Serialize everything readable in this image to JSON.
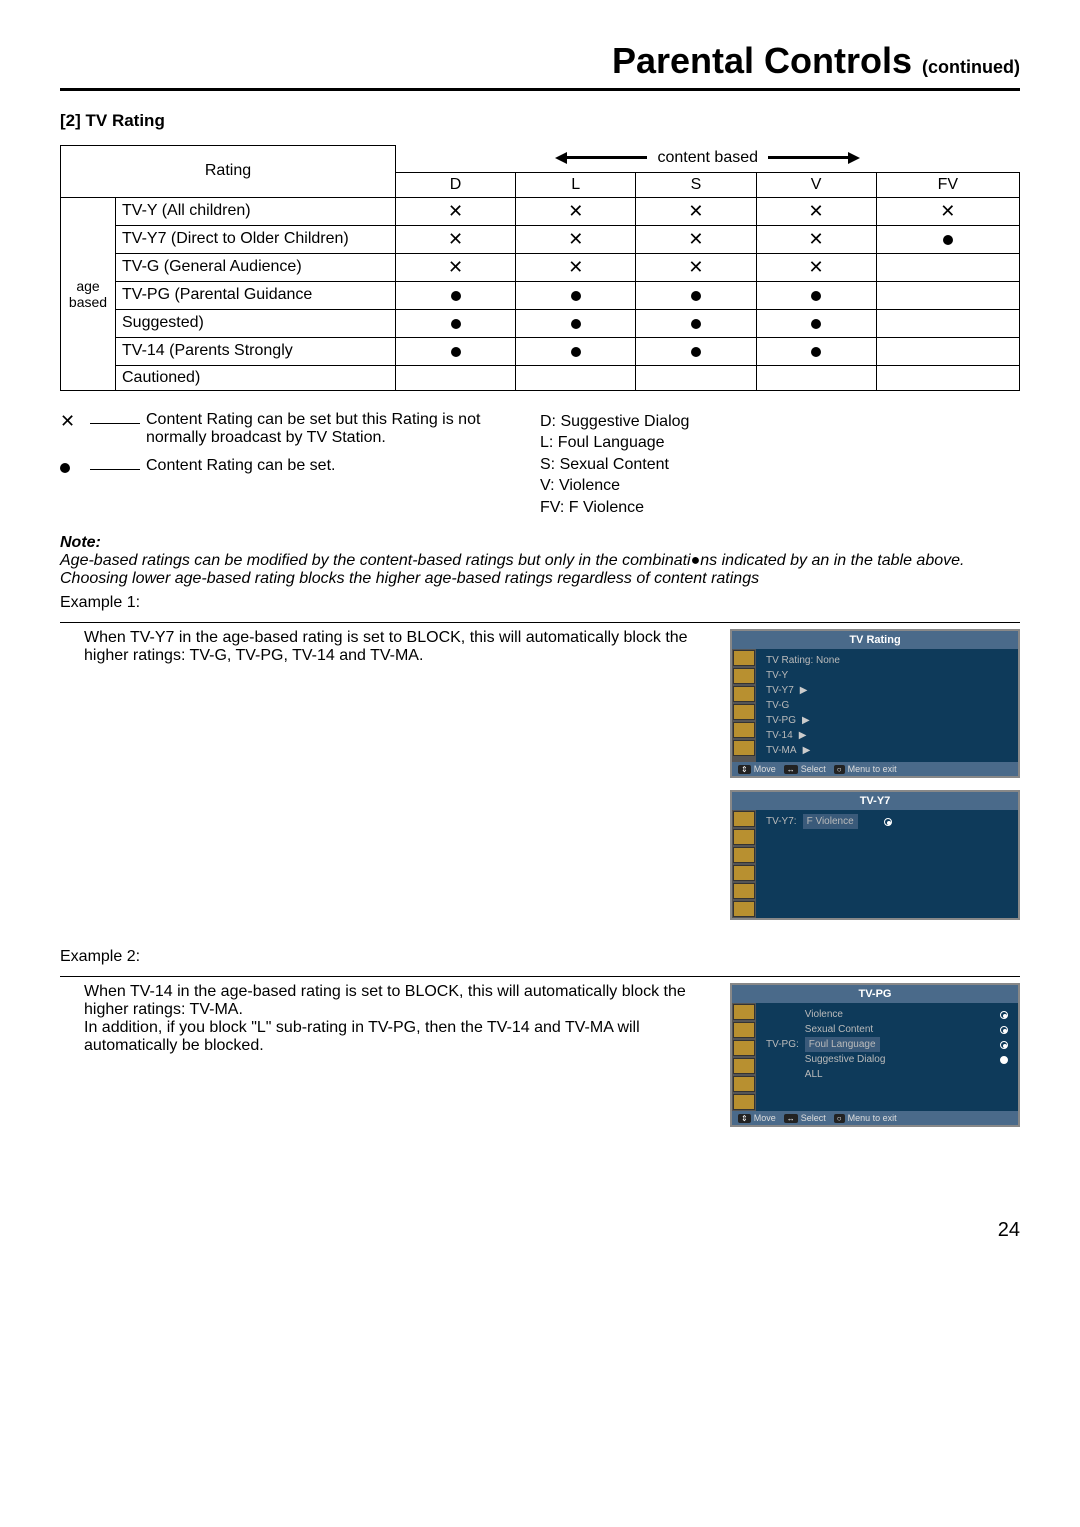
{
  "page": {
    "title": "Parental Controls",
    "subtitle": "(continued)",
    "section_heading": "[2] TV Rating",
    "page_number": "24"
  },
  "table": {
    "rating_label": "Rating",
    "content_based_label": "content based",
    "age_based_label": "age based",
    "columns": [
      "D",
      "L",
      "S",
      "V",
      "FV"
    ],
    "rows": [
      {
        "name": "TV-Y (All children)",
        "marks": [
          "x",
          "x",
          "x",
          "x",
          "x"
        ]
      },
      {
        "name": "TV-Y7 (Direct to Older Children)",
        "marks": [
          "x",
          "x",
          "x",
          "x",
          "dot"
        ]
      },
      {
        "name": "TV-G (General Audience)",
        "marks": [
          "x",
          "x",
          "x",
          "x",
          ""
        ]
      },
      {
        "name": "TV-PG (Parental Guidance",
        "marks": [
          "dot",
          "dot",
          "dot",
          "dot",
          ""
        ]
      },
      {
        "name": "Suggested)",
        "marks": [
          "dot",
          "dot",
          "dot",
          "dot",
          ""
        ]
      },
      {
        "name": "TV-14 (Parents Strongly",
        "marks": [
          "dot",
          "dot",
          "dot",
          "dot",
          ""
        ]
      },
      {
        "name": "Cautioned)",
        "marks": [
          "",
          "",
          "",
          "",
          ""
        ]
      }
    ]
  },
  "legend": {
    "x_text": "Content Rating can be set but this Rating is not normally broadcast by TV Station.",
    "dot_text": "Content Rating can be set.",
    "codes": {
      "d": "D: Suggestive Dialog",
      "l": "L: Foul  Language",
      "s": "S: Sexual Content",
      "v": "V: Violence",
      "fv": "FV: F Violence"
    }
  },
  "note": {
    "label": "Note:",
    "line1": "Age-based ratings can be modified by the content-based ratings but only in the combinati●ns indicated by an   in the table above.",
    "line2": "Choosing lower age-based rating blocks the higher age-based ratings regardless of content ratings"
  },
  "example1": {
    "title": "Example 1:",
    "text": "When TV-Y7 in the age-based rating is set to BLOCK, this will automatically block the higher ratings: TV-G, TV-PG, TV-14 and TV-MA."
  },
  "example2": {
    "title": "Example 2:",
    "text1": "When TV-14 in the age-based rating is set to BLOCK, this will automatically block the higher ratings: TV-MA.",
    "text2": "In addition, if you block \"L\" sub-rating in TV-PG, then the TV-14 and TV-MA will automatically be blocked."
  },
  "osd1": {
    "title": "TV Rating",
    "items": [
      {
        "label": "TV Rating: None",
        "arrow": false
      },
      {
        "label": "TV-Y",
        "arrow": false
      },
      {
        "label": "TV-Y7",
        "arrow": true
      },
      {
        "label": "TV-G",
        "arrow": false
      },
      {
        "label": "TV-PG",
        "arrow": true
      },
      {
        "label": "TV-14",
        "arrow": true
      },
      {
        "label": "TV-MA",
        "arrow": true
      }
    ],
    "footer": {
      "move": "Move",
      "select": "Select",
      "menu": "Menu to exit"
    }
  },
  "osd2": {
    "title": "TV-Y7",
    "row_label": "TV-Y7:",
    "item": "F Violence"
  },
  "osd3": {
    "title": "TV-PG",
    "row_label": "TV-PG:",
    "items": [
      {
        "label": "Violence",
        "state": "on"
      },
      {
        "label": "Sexual Content",
        "state": "on"
      },
      {
        "label": "Foul Language",
        "state": "on",
        "hl": true
      },
      {
        "label": "Suggestive Dialog",
        "state": "dot"
      },
      {
        "label": "ALL",
        "state": ""
      }
    ],
    "footer": {
      "move": "Move",
      "select": "Select",
      "menu": "Menu to exit"
    }
  }
}
